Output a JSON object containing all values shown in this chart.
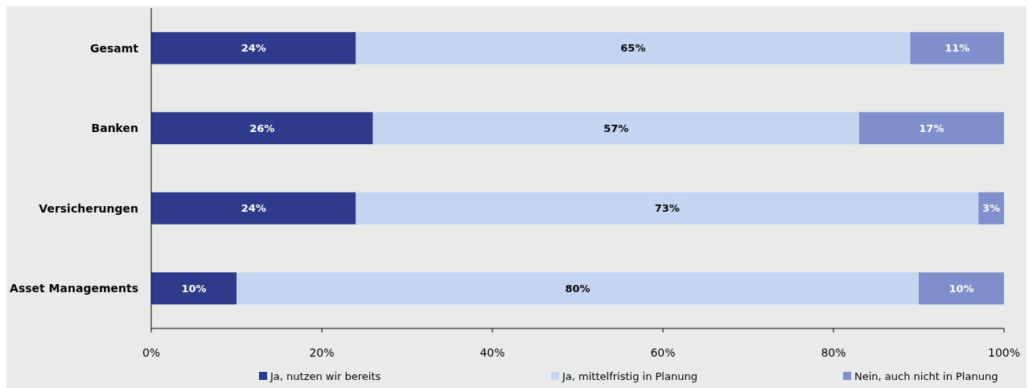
{
  "chart_data": {
    "type": "bar",
    "orientation": "horizontal",
    "stacked": true,
    "categories": [
      "Gesamt",
      "Banken",
      "Versicherungen",
      "Asset Managements"
    ],
    "series": [
      {
        "name": "Ja, nutzen wir bereits",
        "color": "#2e3a8c",
        "values": [
          24,
          26,
          24,
          10
        ],
        "value_labels": [
          "24%",
          "26%",
          "24%",
          "10%"
        ]
      },
      {
        "name": "Ja, mittelfristig in Planung",
        "color": "#c5d5f1",
        "values": [
          65,
          57,
          73,
          80
        ],
        "value_labels": [
          "65%",
          "57%",
          "73%",
          "80%"
        ]
      },
      {
        "name": "Nein, auch nicht in Planung",
        "color": "#7f8fcc",
        "values": [
          11,
          17,
          3,
          10
        ],
        "value_labels": [
          "11%",
          "17%",
          "3%",
          "10%"
        ]
      }
    ],
    "xlim": [
      0,
      100
    ],
    "xticks": [
      {
        "value": 0,
        "label": "0%"
      },
      {
        "value": 20,
        "label": "20%"
      },
      {
        "value": 40,
        "label": "40%"
      },
      {
        "value": 60,
        "label": "60%"
      },
      {
        "value": 80,
        "label": "80%"
      },
      {
        "value": 100,
        "label": "100%"
      }
    ],
    "legend": "bottom",
    "grid": false
  }
}
